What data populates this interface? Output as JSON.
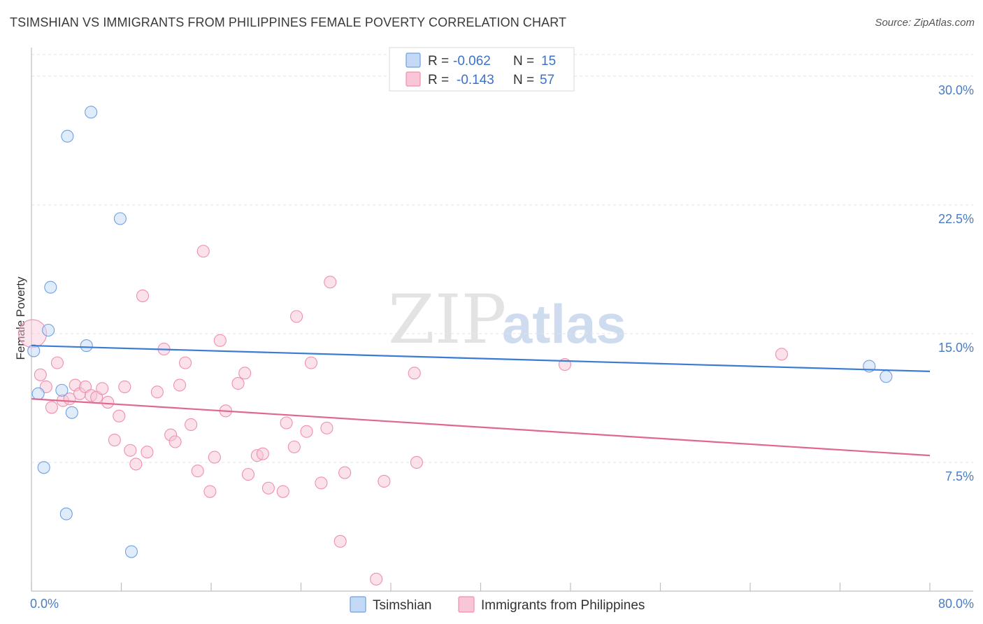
{
  "chart_data": {
    "type": "scatter",
    "title": "TSIMSHIAN VS IMMIGRANTS FROM PHILIPPINES FEMALE POVERTY CORRELATION CHART",
    "source": "Source: ZipAtlas.com",
    "ylabel": "Female Poverty",
    "xlim": [
      0,
      80
    ],
    "ylim": [
      0,
      31.5
    ],
    "x_tick_labels": [
      "0.0%",
      "80.0%"
    ],
    "y_ticks": [
      7.5,
      15.0,
      22.5,
      30.0
    ],
    "y_tick_labels": [
      "7.5%",
      "15.0%",
      "22.5%",
      "30.0%"
    ],
    "watermark": {
      "part1": "ZIP",
      "part2": "atlas"
    },
    "colors": {
      "tsimshian": "#6fa0e0",
      "philippines": "#ef8fb0",
      "tsim_line": "#3a7bd5",
      "phil_line": "#e0688f"
    },
    "legend": {
      "r_label": "R =",
      "n_label": "N =",
      "rows": [
        {
          "r": "-0.062",
          "n": "15"
        },
        {
          "r": "-0.143",
          "n": "57"
        }
      ]
    },
    "series": [
      {
        "name": "Tsimshian",
        "r": -0.062,
        "n": 15,
        "trend": {
          "x": [
            0,
            80
          ],
          "y": [
            14.3,
            12.8
          ]
        },
        "points": [
          {
            "x": 0.2,
            "y": 14.0
          },
          {
            "x": 0.6,
            "y": 11.5
          },
          {
            "x": 1.1,
            "y": 7.2
          },
          {
            "x": 1.5,
            "y": 15.2
          },
          {
            "x": 1.7,
            "y": 17.7
          },
          {
            "x": 2.7,
            "y": 11.7
          },
          {
            "x": 3.1,
            "y": 4.5
          },
          {
            "x": 3.2,
            "y": 26.5
          },
          {
            "x": 3.6,
            "y": 10.4
          },
          {
            "x": 4.9,
            "y": 14.3
          },
          {
            "x": 5.3,
            "y": 27.9
          },
          {
            "x": 7.9,
            "y": 21.7
          },
          {
            "x": 8.9,
            "y": 2.3
          },
          {
            "x": 74.6,
            "y": 13.1
          },
          {
            "x": 76.1,
            "y": 12.5
          }
        ]
      },
      {
        "name": "Immigrants from Philippines",
        "r": -0.143,
        "n": 57,
        "trend": {
          "x": [
            0,
            80
          ],
          "y": [
            11.2,
            7.9
          ]
        },
        "points": [
          {
            "x": 0.1,
            "y": 15.0,
            "big": true
          },
          {
            "x": 0.8,
            "y": 12.6
          },
          {
            "x": 1.3,
            "y": 11.9
          },
          {
            "x": 1.8,
            "y": 10.7
          },
          {
            "x": 2.3,
            "y": 13.3
          },
          {
            "x": 2.8,
            "y": 11.1
          },
          {
            "x": 3.4,
            "y": 11.2
          },
          {
            "x": 3.9,
            "y": 12.0
          },
          {
            "x": 4.3,
            "y": 11.5
          },
          {
            "x": 4.8,
            "y": 11.9
          },
          {
            "x": 5.3,
            "y": 11.4
          },
          {
            "x": 5.8,
            "y": 11.3
          },
          {
            "x": 6.3,
            "y": 11.8
          },
          {
            "x": 6.8,
            "y": 11.0
          },
          {
            "x": 7.4,
            "y": 8.8
          },
          {
            "x": 7.8,
            "y": 10.2
          },
          {
            "x": 8.3,
            "y": 11.9
          },
          {
            "x": 8.8,
            "y": 8.2
          },
          {
            "x": 9.3,
            "y": 7.4
          },
          {
            "x": 9.9,
            "y": 17.2
          },
          {
            "x": 10.3,
            "y": 8.1
          },
          {
            "x": 11.2,
            "y": 11.6
          },
          {
            "x": 11.8,
            "y": 14.1
          },
          {
            "x": 12.4,
            "y": 9.1
          },
          {
            "x": 12.8,
            "y": 8.7
          },
          {
            "x": 13.2,
            "y": 12.0
          },
          {
            "x": 13.7,
            "y": 13.3
          },
          {
            "x": 14.2,
            "y": 9.7
          },
          {
            "x": 14.8,
            "y": 7.0
          },
          {
            "x": 15.3,
            "y": 19.8
          },
          {
            "x": 15.9,
            "y": 5.8
          },
          {
            "x": 16.3,
            "y": 7.8
          },
          {
            "x": 16.8,
            "y": 14.6
          },
          {
            "x": 17.3,
            "y": 10.5
          },
          {
            "x": 18.4,
            "y": 12.1
          },
          {
            "x": 19.0,
            "y": 12.7
          },
          {
            "x": 19.3,
            "y": 6.8
          },
          {
            "x": 20.1,
            "y": 7.9
          },
          {
            "x": 20.6,
            "y": 8.0
          },
          {
            "x": 21.1,
            "y": 6.0
          },
          {
            "x": 22.4,
            "y": 5.8
          },
          {
            "x": 22.7,
            "y": 9.8
          },
          {
            "x": 23.4,
            "y": 8.4
          },
          {
            "x": 23.6,
            "y": 16.0
          },
          {
            "x": 24.5,
            "y": 9.3
          },
          {
            "x": 24.9,
            "y": 13.3
          },
          {
            "x": 25.8,
            "y": 6.3
          },
          {
            "x": 26.3,
            "y": 9.5
          },
          {
            "x": 26.6,
            "y": 18.0
          },
          {
            "x": 27.5,
            "y": 2.9
          },
          {
            "x": 27.9,
            "y": 6.9
          },
          {
            "x": 30.7,
            "y": 0.7
          },
          {
            "x": 31.4,
            "y": 6.4
          },
          {
            "x": 34.1,
            "y": 12.7
          },
          {
            "x": 34.3,
            "y": 7.5
          },
          {
            "x": 47.5,
            "y": 13.2
          },
          {
            "x": 66.8,
            "y": 13.8
          }
        ]
      }
    ]
  }
}
